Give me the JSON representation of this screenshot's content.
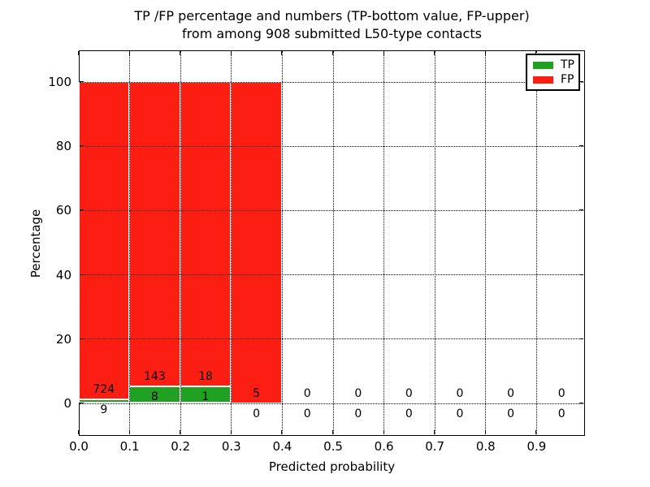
{
  "figure": {
    "title_line1": "TP /FP percentage and numbers (TP-bottom value, FP-upper)",
    "title_line2": "from among 908 submitted L50-type contacts"
  },
  "axes": {
    "xlabel": "Predicted probability",
    "ylabel": "Percentage",
    "x_tick_labels": [
      "0.0",
      "0.1",
      "0.2",
      "0.3",
      "0.4",
      "0.5",
      "0.6",
      "0.7",
      "0.8",
      "0.9"
    ],
    "y_tick_labels": [
      "0",
      "20",
      "40",
      "60",
      "80",
      "100"
    ],
    "grid_style": "dotted"
  },
  "legend": {
    "position": "top-right",
    "items": [
      {
        "label": "TP",
        "color": "#21a121"
      },
      {
        "label": "FP",
        "color": "#fc1d13"
      }
    ]
  },
  "chart_data": {
    "type": "bar",
    "stacked": true,
    "title": "TP /FP percentage and numbers (TP-bottom value, FP-upper) from among 908 submitted L50-type contacts",
    "xlabel": "Predicted probability",
    "ylabel": "Percentage",
    "xlim": [
      0.0,
      1.0
    ],
    "ylim": [
      -10,
      110
    ],
    "grid": true,
    "legend_position": "upper right",
    "total_contacts": 908,
    "bin_width": 0.1,
    "bins": [
      {
        "x0": 0.0,
        "x1": 0.1,
        "tp_count": 9,
        "fp_count": 724,
        "tp_pct": 1.23,
        "fp_pct": 98.77
      },
      {
        "x0": 0.1,
        "x1": 0.2,
        "tp_count": 8,
        "fp_count": 143,
        "tp_pct": 5.3,
        "fp_pct": 94.7
      },
      {
        "x0": 0.2,
        "x1": 0.3,
        "tp_count": 1,
        "fp_count": 18,
        "tp_pct": 5.26,
        "fp_pct": 94.74
      },
      {
        "x0": 0.3,
        "x1": 0.4,
        "tp_count": 0,
        "fp_count": 5,
        "tp_pct": 0.0,
        "fp_pct": 100.0
      },
      {
        "x0": 0.4,
        "x1": 0.5,
        "tp_count": 0,
        "fp_count": 0,
        "tp_pct": 0.0,
        "fp_pct": 0.0
      },
      {
        "x0": 0.5,
        "x1": 0.6,
        "tp_count": 0,
        "fp_count": 0,
        "tp_pct": 0.0,
        "fp_pct": 0.0
      },
      {
        "x0": 0.6,
        "x1": 0.7,
        "tp_count": 0,
        "fp_count": 0,
        "tp_pct": 0.0,
        "fp_pct": 0.0
      },
      {
        "x0": 0.7,
        "x1": 0.8,
        "tp_count": 0,
        "fp_count": 0,
        "tp_pct": 0.0,
        "fp_pct": 0.0
      },
      {
        "x0": 0.8,
        "x1": 0.9,
        "tp_count": 0,
        "fp_count": 0,
        "tp_pct": 0.0,
        "fp_pct": 0.0
      },
      {
        "x0": 0.9,
        "x1": 1.0,
        "tp_count": 0,
        "fp_count": 0,
        "tp_pct": 0.0,
        "fp_pct": 0.0
      }
    ],
    "series": [
      {
        "name": "TP",
        "color": "#21a121",
        "counts": [
          9,
          8,
          1,
          0,
          0,
          0,
          0,
          0,
          0,
          0
        ],
        "values_pct": [
          1.23,
          5.3,
          5.26,
          0,
          0,
          0,
          0,
          0,
          0,
          0
        ]
      },
      {
        "name": "FP",
        "color": "#fc1d13",
        "counts": [
          724,
          143,
          18,
          5,
          0,
          0,
          0,
          0,
          0,
          0
        ],
        "values_pct": [
          98.77,
          94.7,
          94.74,
          100,
          0,
          0,
          0,
          0,
          0,
          0
        ]
      }
    ]
  }
}
